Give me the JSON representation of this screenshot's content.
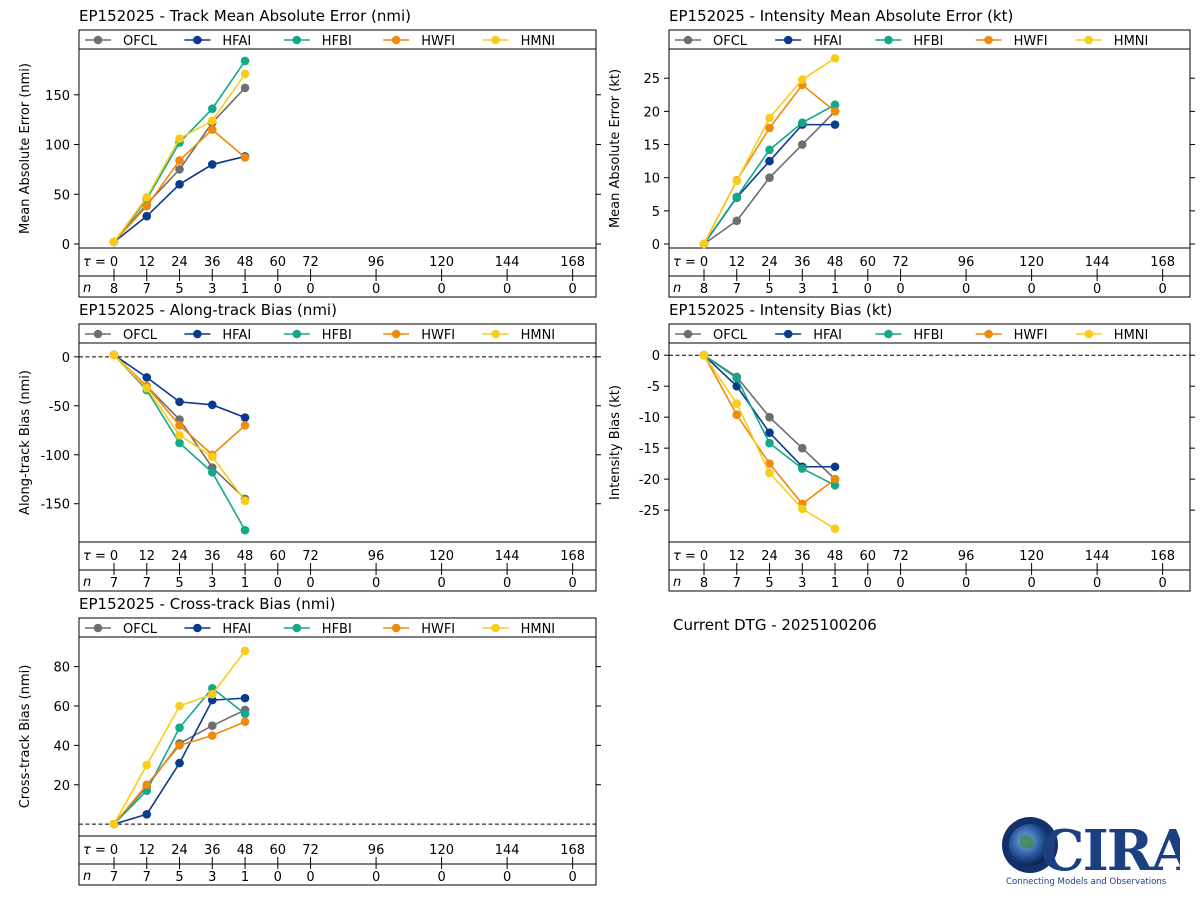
{
  "colors": {
    "OFCL": "#6e6e6e",
    "HFAI": "#0a3a8c",
    "HFBI": "#12a88a",
    "HWFI": "#ef8a0c",
    "HMNI": "#f9cc1c"
  },
  "tau_label": "τ = ",
  "n_label": "n",
  "dtg_text": "Current DTG - 2025100206",
  "logo": {
    "text": "CIRA",
    "tagline": "Connecting Models and Observations"
  },
  "chart_data": [
    {
      "id": "track",
      "type": "line",
      "title": "EP152025 - Track Mean Absolute Error (nmi)",
      "ylabel": "Mean Absolute Error (nmi)",
      "ylim": [
        0,
        190
      ],
      "yticks": [
        0,
        50,
        100,
        150
      ],
      "zero_line": false,
      "x": [
        0,
        12,
        24,
        36,
        48
      ],
      "taus": [
        0,
        12,
        24,
        36,
        48,
        60,
        72,
        96,
        120,
        144,
        168
      ],
      "n": [
        8,
        7,
        5,
        3,
        1,
        0,
        0,
        0,
        0,
        0,
        0
      ],
      "series": [
        {
          "name": "OFCL",
          "values": [
            2,
            40,
            75,
            122,
            157
          ]
        },
        {
          "name": "HFAI",
          "values": [
            2,
            28,
            60,
            80,
            88
          ]
        },
        {
          "name": "HFBI",
          "values": [
            2,
            45,
            102,
            136,
            184
          ]
        },
        {
          "name": "HWFI",
          "values": [
            2,
            38,
            84,
            115,
            87
          ]
        },
        {
          "name": "HMNI",
          "values": [
            2,
            47,
            106,
            124,
            171
          ]
        }
      ]
    },
    {
      "id": "intensity",
      "type": "line",
      "title": "EP152025 - Intensity Mean Absolute Error (kt)",
      "ylabel": "Mean Absolute Error (kt)",
      "ylim": [
        0,
        28.5
      ],
      "yticks": [
        0,
        5,
        10,
        15,
        20,
        25
      ],
      "zero_line": false,
      "x": [
        0,
        12,
        24,
        36,
        48
      ],
      "taus": [
        0,
        12,
        24,
        36,
        48,
        60,
        72,
        96,
        120,
        144,
        168
      ],
      "n": [
        8,
        7,
        5,
        3,
        1,
        0,
        0,
        0,
        0,
        0,
        0
      ],
      "series": [
        {
          "name": "OFCL",
          "values": [
            0,
            3.5,
            10,
            15,
            20
          ]
        },
        {
          "name": "HFAI",
          "values": [
            0,
            7,
            12.5,
            18,
            18
          ]
        },
        {
          "name": "HFBI",
          "values": [
            0,
            7.1,
            14.2,
            18.3,
            21
          ]
        },
        {
          "name": "HWFI",
          "values": [
            0,
            9.6,
            17.5,
            24,
            20
          ]
        },
        {
          "name": "HMNI",
          "values": [
            0,
            9.5,
            19,
            24.8,
            28
          ]
        }
      ]
    },
    {
      "id": "along",
      "type": "line",
      "title": "EP152025 - Along-track Bias (nmi)",
      "ylabel": "Along-track Bias (nmi)",
      "ylim": [
        -185,
        8
      ],
      "yticks": [
        0,
        -50,
        -100,
        -150
      ],
      "zero_line": true,
      "x": [
        0,
        12,
        24,
        36,
        48
      ],
      "taus": [
        0,
        12,
        24,
        36,
        48,
        60,
        72,
        96,
        120,
        144,
        168
      ],
      "n": [
        7,
        7,
        5,
        3,
        1,
        0,
        0,
        0,
        0,
        0,
        0
      ],
      "series": [
        {
          "name": "OFCL",
          "values": [
            2,
            -30,
            -64,
            -113,
            -145
          ]
        },
        {
          "name": "HFAI",
          "values": [
            2,
            -21,
            -46,
            -49,
            -62
          ]
        },
        {
          "name": "HFBI",
          "values": [
            2,
            -34,
            -88,
            -118,
            -177
          ]
        },
        {
          "name": "HWFI",
          "values": [
            2,
            -30,
            -70,
            -100,
            -70
          ]
        },
        {
          "name": "HMNI",
          "values": [
            2,
            -32,
            -80,
            -102,
            -147
          ]
        }
      ]
    },
    {
      "id": "intbias",
      "type": "line",
      "title": "EP152025 - Intensity Bias (kt)",
      "ylabel": "Intensity Bias (kt)",
      "ylim": [
        -29.5,
        1
      ],
      "yticks": [
        0,
        -5,
        -10,
        -15,
        -20,
        -25
      ],
      "zero_line": true,
      "x": [
        0,
        12,
        24,
        36,
        48
      ],
      "taus": [
        0,
        12,
        24,
        36,
        48,
        60,
        72,
        96,
        120,
        144,
        168
      ],
      "n": [
        8,
        7,
        5,
        3,
        1,
        0,
        0,
        0,
        0,
        0,
        0
      ],
      "series": [
        {
          "name": "OFCL",
          "values": [
            0,
            -3.5,
            -10,
            -15,
            -20
          ]
        },
        {
          "name": "HFAI",
          "values": [
            0,
            -5,
            -12.5,
            -18,
            -18
          ]
        },
        {
          "name": "HFBI",
          "values": [
            0,
            -3.7,
            -14.2,
            -18.3,
            -21
          ]
        },
        {
          "name": "HWFI",
          "values": [
            0,
            -9.6,
            -17.5,
            -24,
            -20
          ]
        },
        {
          "name": "HMNI",
          "values": [
            0,
            -7.8,
            -19,
            -24.8,
            -28
          ]
        }
      ]
    },
    {
      "id": "cross",
      "type": "line",
      "title": "EP152025 - Cross-track Bias (nmi)",
      "ylabel": "Cross-track Bias (nmi)",
      "ylim": [
        -4,
        92
      ],
      "yticks": [
        20,
        40,
        60,
        80
      ],
      "zero_line": true,
      "x": [
        0,
        12,
        24,
        36,
        48
      ],
      "taus": [
        0,
        12,
        24,
        36,
        48,
        60,
        72,
        96,
        120,
        144,
        168
      ],
      "n": [
        7,
        7,
        5,
        3,
        1,
        0,
        0,
        0,
        0,
        0,
        0
      ],
      "series": [
        {
          "name": "OFCL",
          "values": [
            0,
            19,
            41,
            50,
            58
          ]
        },
        {
          "name": "HFAI",
          "values": [
            0,
            5,
            31,
            63,
            64
          ]
        },
        {
          "name": "HFBI",
          "values": [
            0,
            17,
            49,
            69,
            56
          ]
        },
        {
          "name": "HWFI",
          "values": [
            0,
            20,
            40,
            45,
            52
          ]
        },
        {
          "name": "HMNI",
          "values": [
            0,
            30,
            60,
            66,
            88
          ]
        }
      ]
    }
  ]
}
